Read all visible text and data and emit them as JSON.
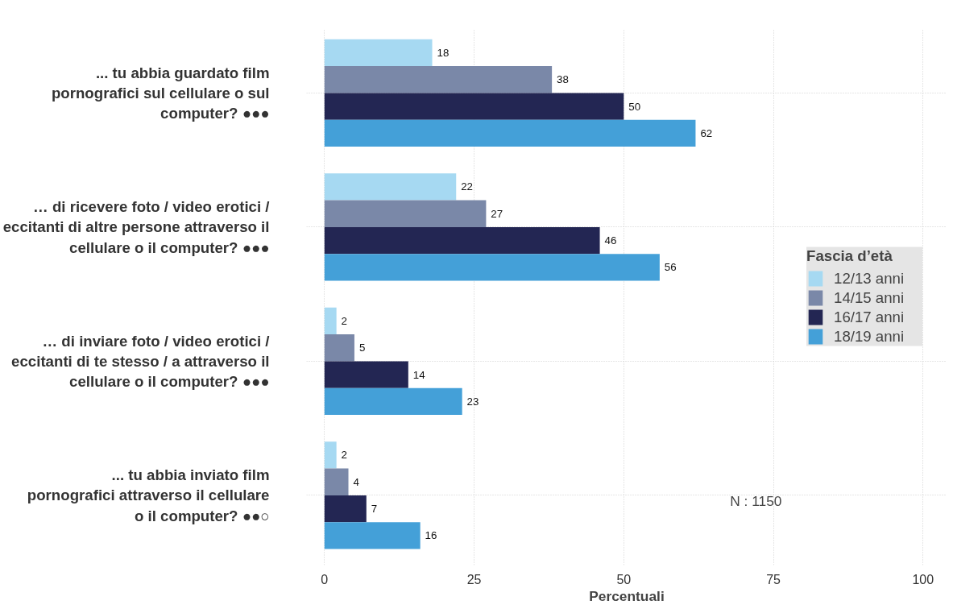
{
  "chart_data": {
    "type": "bar",
    "orientation": "horizontal",
    "categories": [
      "... tu abbia guardato film\npornografici sul cellulare o sul\ncomputer? ●●●",
      "… di ricevere foto / video erotici /\neccitanti di altre persone attraverso il\ncellulare o il computer? ●●●",
      "… di inviare foto / video erotici /\neccitanti di te stesso / a attraverso il\ncellulare o il computer? ●●●",
      "... tu abbia inviato film\npornografici attraverso il cellulare\no il computer? ●●○"
    ],
    "series": [
      {
        "name": "12/13 anni",
        "color": "#a6d9f2",
        "values": [
          18,
          22,
          2,
          2
        ]
      },
      {
        "name": "14/15 anni",
        "color": "#7a88a8",
        "values": [
          38,
          27,
          5,
          4
        ]
      },
      {
        "name": "16/17 anni",
        "color": "#232653",
        "values": [
          50,
          46,
          14,
          7
        ]
      },
      {
        "name": "18/19 anni",
        "color": "#44a0d8",
        "values": [
          62,
          56,
          23,
          16
        ]
      }
    ],
    "xlim": [
      -3,
      104
    ],
    "xticks": [
      0,
      25,
      50,
      75,
      100
    ],
    "xlabel": "Percentuali",
    "legend_title": "Fascia d’età",
    "legend": "right",
    "grid": true,
    "data_labels": true,
    "annotations": [
      "N : 1150"
    ]
  }
}
